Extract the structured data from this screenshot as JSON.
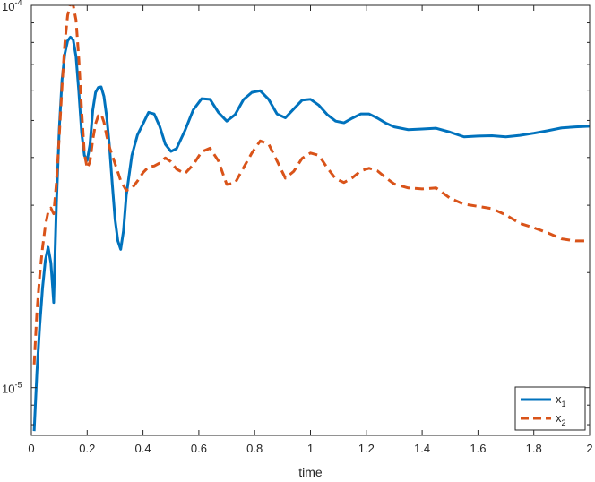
{
  "chart_data": {
    "type": "line",
    "title": "",
    "xlabel": "time",
    "ylabel": "",
    "xlim": [
      0,
      2
    ],
    "ylim": [
      7.5e-06,
      0.0001
    ],
    "yscale": "log",
    "x_ticks": [
      0,
      0.2,
      0.4,
      0.6,
      0.8,
      1,
      1.2,
      1.4,
      1.6,
      1.8,
      2
    ],
    "x_tick_labels": [
      "0",
      "0.2",
      "0.4",
      "0.6",
      "0.8",
      "1",
      "1.2",
      "1.4",
      "1.6",
      "1.8",
      "2"
    ],
    "y_ticks": [
      1e-05,
      0.0001
    ],
    "y_tick_labels": [
      {
        "base": "10",
        "exp": "-5"
      },
      {
        "base": "10",
        "exp": "-4"
      }
    ],
    "grid": false,
    "legend_position": "bottom-right",
    "series": [
      {
        "name_base": "x",
        "name_sub": "1",
        "color": "#0072BD",
        "dash": "solid",
        "x": [
          0.01,
          0.02,
          0.03,
          0.04,
          0.05,
          0.06,
          0.07,
          0.08,
          0.09,
          0.1,
          0.11,
          0.12,
          0.13,
          0.14,
          0.15,
          0.16,
          0.17,
          0.18,
          0.19,
          0.2,
          0.21,
          0.22,
          0.23,
          0.24,
          0.25,
          0.26,
          0.27,
          0.28,
          0.29,
          0.3,
          0.31,
          0.32,
          0.33,
          0.34,
          0.36,
          0.38,
          0.4,
          0.42,
          0.44,
          0.46,
          0.48,
          0.5,
          0.52,
          0.55,
          0.58,
          0.61,
          0.64,
          0.67,
          0.7,
          0.73,
          0.76,
          0.79,
          0.82,
          0.85,
          0.88,
          0.91,
          0.94,
          0.97,
          1.0,
          1.03,
          1.06,
          1.09,
          1.12,
          1.15,
          1.18,
          1.21,
          1.24,
          1.27,
          1.3,
          1.35,
          1.4,
          1.45,
          1.5,
          1.55,
          1.6,
          1.65,
          1.7,
          1.75,
          1.8,
          1.85,
          1.9,
          1.95,
          2.0
        ],
        "y": [
          7.7e-06,
          1.1e-05,
          1.45e-05,
          1.82e-05,
          2.15e-05,
          2.33e-05,
          2.12e-05,
          1.67e-05,
          3.05e-05,
          4.75e-05,
          6.4e-05,
          7.48e-05,
          8.08e-05,
          8.26e-05,
          8.12e-05,
          7.35e-05,
          5.95e-05,
          4.65e-05,
          4.05e-05,
          3.93e-05,
          4.32e-05,
          5.32e-05,
          5.92e-05,
          6.1e-05,
          6.12e-05,
          5.78e-05,
          5.1e-05,
          4.27e-05,
          3.4e-05,
          2.75e-05,
          2.42e-05,
          2.3e-05,
          2.57e-05,
          3.18e-05,
          4.05e-05,
          4.58e-05,
          4.9e-05,
          5.25e-05,
          5.2e-05,
          4.82e-05,
          4.33e-05,
          4.15e-05,
          4.22e-05,
          4.7e-05,
          5.33e-05,
          5.7e-05,
          5.68e-05,
          5.25e-05,
          4.98e-05,
          5.18e-05,
          5.67e-05,
          5.92e-05,
          5.98e-05,
          5.68e-05,
          5.2e-05,
          5.08e-05,
          5.36e-05,
          5.65e-05,
          5.68e-05,
          5.48e-05,
          5.18e-05,
          4.98e-05,
          4.93e-05,
          5.07e-05,
          5.2e-05,
          5.2e-05,
          5.07e-05,
          4.92e-05,
          4.81e-05,
          4.73e-05,
          4.75e-05,
          4.77e-05,
          4.66e-05,
          4.53e-05,
          4.55e-05,
          4.56e-05,
          4.53e-05,
          4.57e-05,
          4.63e-05,
          4.7e-05,
          4.78e-05,
          4.81e-05,
          4.83e-05
        ]
      },
      {
        "name_base": "x",
        "name_sub": "2",
        "color": "#D95319",
        "dash": "dashed",
        "x": [
          0.01,
          0.02,
          0.03,
          0.04,
          0.05,
          0.06,
          0.07,
          0.08,
          0.09,
          0.1,
          0.11,
          0.12,
          0.13,
          0.14,
          0.15,
          0.16,
          0.17,
          0.18,
          0.19,
          0.2,
          0.21,
          0.22,
          0.23,
          0.24,
          0.25,
          0.26,
          0.27,
          0.28,
          0.29,
          0.3,
          0.32,
          0.34,
          0.36,
          0.38,
          0.4,
          0.42,
          0.44,
          0.46,
          0.48,
          0.5,
          0.52,
          0.55,
          0.58,
          0.61,
          0.64,
          0.67,
          0.7,
          0.73,
          0.76,
          0.79,
          0.82,
          0.85,
          0.88,
          0.91,
          0.94,
          0.97,
          1.0,
          1.03,
          1.06,
          1.09,
          1.12,
          1.15,
          1.18,
          1.21,
          1.24,
          1.27,
          1.3,
          1.35,
          1.4,
          1.45,
          1.5,
          1.55,
          1.6,
          1.65,
          1.7,
          1.75,
          1.8,
          1.85,
          1.9,
          1.95,
          2.0
        ],
        "y": [
          1.15e-05,
          1.58e-05,
          1.97e-05,
          2.32e-05,
          2.65e-05,
          2.88e-05,
          2.95e-05,
          2.85e-05,
          3.45e-05,
          4.55e-05,
          6.15e-05,
          7.98e-05,
          9.42e-05,
          0.000101,
          0.0001,
          9.15e-05,
          7.25e-05,
          5.35e-05,
          4.1e-05,
          3.75e-05,
          3.9e-05,
          4.45e-05,
          4.9e-05,
          5.15e-05,
          5.2e-05,
          4.95e-05,
          4.55e-05,
          4.25e-05,
          4.05e-05,
          3.85e-05,
          3.48e-05,
          3.28e-05,
          3.32e-05,
          3.47e-05,
          3.65e-05,
          3.78e-05,
          3.8e-05,
          3.87e-05,
          3.99e-05,
          3.9e-05,
          3.73e-05,
          3.63e-05,
          3.83e-05,
          4.14e-05,
          4.23e-05,
          3.92e-05,
          3.4e-05,
          3.43e-05,
          3.76e-05,
          4.11e-05,
          4.42e-05,
          4.34e-05,
          3.92e-05,
          3.53e-05,
          3.68e-05,
          3.98e-05,
          4.11e-05,
          4.05e-05,
          3.76e-05,
          3.52e-05,
          3.44e-05,
          3.54e-05,
          3.69e-05,
          3.75e-05,
          3.69e-05,
          3.54e-05,
          3.41e-05,
          3.33e-05,
          3.31e-05,
          3.33e-05,
          3.13e-05,
          3.02e-05,
          2.98e-05,
          2.94e-05,
          2.83e-05,
          2.69e-05,
          2.62e-05,
          2.54e-05,
          2.45e-05,
          2.42e-05,
          2.42e-05
        ]
      }
    ]
  }
}
